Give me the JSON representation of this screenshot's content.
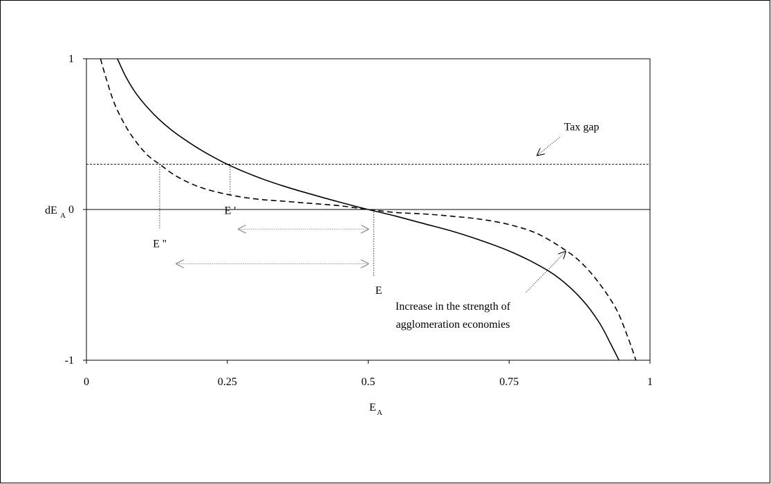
{
  "chart_data": {
    "type": "line",
    "xlabel": {
      "main": "E",
      "sub": "A"
    },
    "ylabel": {
      "main": "dE",
      "sub": "A"
    },
    "xlim": [
      0,
      1
    ],
    "ylim": [
      -1,
      1
    ],
    "x_ticks": [
      {
        "value": 0,
        "label": "0"
      },
      {
        "value": 0.25,
        "label": "0.25"
      },
      {
        "value": 0.5,
        "label": "0.5"
      },
      {
        "value": 0.75,
        "label": "0.75"
      },
      {
        "value": 1,
        "label": "1"
      }
    ],
    "y_ticks": [
      {
        "value": 1,
        "label": "1"
      },
      {
        "value": 0,
        "label": "0"
      },
      {
        "value": -1,
        "label": "-1"
      }
    ],
    "grid": false,
    "series": [
      {
        "style": "solid",
        "x": [
          0.055,
          0.07,
          0.09,
          0.12,
          0.15,
          0.18,
          0.21,
          0.25,
          0.3,
          0.35,
          0.4,
          0.45,
          0.5,
          0.55,
          0.6,
          0.65,
          0.7,
          0.75,
          0.8,
          0.84,
          0.88,
          0.91,
          0.93,
          0.945
        ],
        "y": [
          1.0,
          0.88,
          0.76,
          0.63,
          0.53,
          0.45,
          0.38,
          0.3,
          0.22,
          0.155,
          0.1,
          0.048,
          0.0,
          -0.045,
          -0.095,
          -0.145,
          -0.205,
          -0.275,
          -0.365,
          -0.46,
          -0.6,
          -0.75,
          -0.89,
          -1.0
        ]
      },
      {
        "style": "dashed",
        "x": [
          0.025,
          0.035,
          0.05,
          0.07,
          0.09,
          0.11,
          0.13,
          0.16,
          0.2,
          0.25,
          0.3,
          0.35,
          0.4,
          0.45,
          0.5,
          0.55,
          0.6,
          0.65,
          0.7,
          0.75,
          0.8,
          0.85,
          0.88,
          0.91,
          0.94,
          0.96,
          0.975
        ],
        "y": [
          1.0,
          0.87,
          0.7,
          0.55,
          0.44,
          0.355,
          0.3,
          0.22,
          0.15,
          0.1,
          0.07,
          0.055,
          0.04,
          0.025,
          0.0,
          -0.02,
          -0.03,
          -0.045,
          -0.065,
          -0.1,
          -0.16,
          -0.27,
          -0.36,
          -0.49,
          -0.66,
          -0.84,
          -1.0
        ]
      }
    ],
    "reference_lines": [
      {
        "orientation": "horizontal",
        "y": 0.3,
        "style": "dotted"
      },
      {
        "orientation": "horizontal",
        "y": 0,
        "style": "solid"
      }
    ],
    "points": [
      {
        "label": "E ''",
        "x": 0.13,
        "y": 0.3
      },
      {
        "label": "E '",
        "x": 0.255,
        "y": 0.3
      },
      {
        "label": "E",
        "x": 0.51,
        "y": 0
      }
    ],
    "double_arrows": [
      {
        "x_from": 0.27,
        "x_to": 0.5,
        "y": -0.13
      },
      {
        "x_from": 0.16,
        "x_to": 0.5,
        "y": -0.36
      }
    ],
    "annotations": [
      {
        "lines": [
          "Tax gap"
        ],
        "arrow_from": [
          0.84,
          0.48
        ],
        "arrow_to": [
          0.8,
          0.36
        ]
      },
      {
        "lines": [
          "Increase in the strength of",
          "agglomeration economies"
        ],
        "arrow_from": [
          0.78,
          -0.55
        ],
        "arrow_to": [
          0.85,
          -0.28
        ]
      }
    ]
  }
}
